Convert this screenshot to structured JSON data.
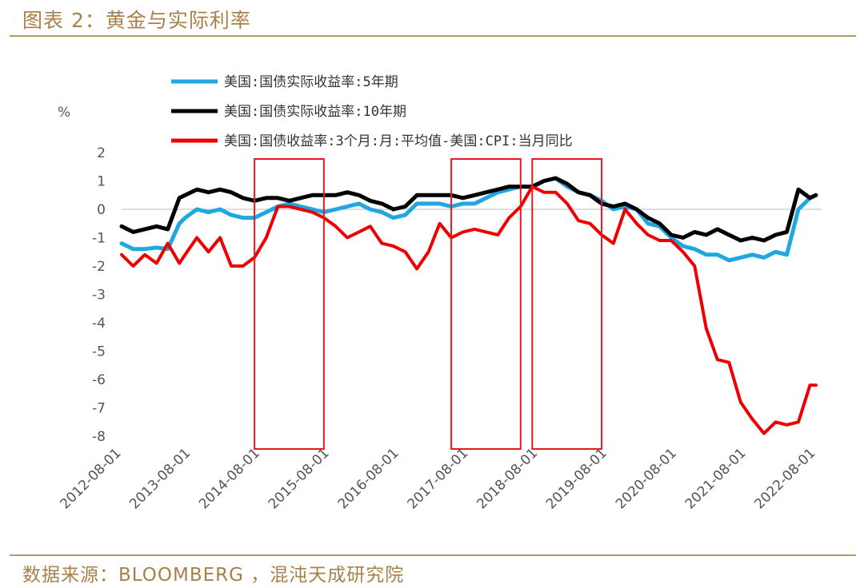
{
  "title": "图表 2：黄金与实际利率",
  "source": "数据来源：BLOOMBERG ，混沌天成研究院",
  "colors": {
    "accent": "#b99766",
    "title": "#a8804a",
    "highlight_box": "#e8191e"
  },
  "chart_data": {
    "type": "line",
    "ylabel": "%",
    "ylim": [
      -8,
      2
    ],
    "y_ticks": [
      "2",
      "1",
      "0",
      "-1",
      "-2",
      "-3",
      "-4",
      "-5",
      "-6",
      "-7",
      "-8"
    ],
    "x_range": [
      "2012-08-01",
      "2022-08-31"
    ],
    "x_ticks": [
      "2012-08-01",
      "2013-08-01",
      "2014-08-01",
      "2015-08-01",
      "2016-08-01",
      "2017-08-01",
      "2018-08-01",
      "2019-08-01",
      "2020-08-01",
      "2021-08-01",
      "2022-08-01"
    ],
    "grid": false,
    "legend_position": "top",
    "series": [
      {
        "name": "美国:国债实际收益率:5年期",
        "color": "#1ea7e1",
        "x": [
          "2012-08",
          "2012-10",
          "2012-12",
          "2013-02",
          "2013-04",
          "2013-06",
          "2013-07",
          "2013-09",
          "2013-11",
          "2014-01",
          "2014-03",
          "2014-05",
          "2014-07",
          "2014-09",
          "2014-11",
          "2015-01",
          "2015-03",
          "2015-05",
          "2015-07",
          "2015-09",
          "2015-11",
          "2016-01",
          "2016-03",
          "2016-05",
          "2016-07",
          "2016-09",
          "2016-11",
          "2017-01",
          "2017-03",
          "2017-05",
          "2017-07",
          "2017-09",
          "2017-11",
          "2018-01",
          "2018-03",
          "2018-05",
          "2018-07",
          "2018-09",
          "2018-11",
          "2019-01",
          "2019-03",
          "2019-05",
          "2019-07",
          "2019-09",
          "2019-11",
          "2020-01",
          "2020-03",
          "2020-05",
          "2020-07",
          "2020-09",
          "2020-11",
          "2021-01",
          "2021-03",
          "2021-05",
          "2021-07",
          "2021-09",
          "2021-11",
          "2022-01",
          "2022-03",
          "2022-05",
          "2022-07",
          "2022-08"
        ],
        "values": [
          -1.2,
          -1.4,
          -1.4,
          -1.35,
          -1.4,
          -0.5,
          -0.3,
          0.0,
          -0.1,
          0.0,
          -0.2,
          -0.3,
          -0.3,
          -0.1,
          0.1,
          0.2,
          0.1,
          0.0,
          -0.1,
          0.0,
          0.1,
          0.2,
          0.0,
          -0.1,
          -0.3,
          -0.2,
          0.2,
          0.2,
          0.2,
          0.1,
          0.2,
          0.2,
          0.4,
          0.6,
          0.7,
          0.8,
          0.8,
          1.0,
          1.1,
          0.8,
          0.6,
          0.5,
          0.3,
          0.0,
          0.1,
          0.0,
          -0.5,
          -0.6,
          -1.0,
          -1.3,
          -1.4,
          -1.6,
          -1.6,
          -1.8,
          -1.7,
          -1.6,
          -1.7,
          -1.5,
          -1.6,
          0.0,
          0.4,
          0.5
        ]
      },
      {
        "name": "美国:国债实际收益率:10年期",
        "color": "#000000",
        "x": [
          "2012-08",
          "2012-10",
          "2012-12",
          "2013-02",
          "2013-04",
          "2013-06",
          "2013-07",
          "2013-09",
          "2013-11",
          "2014-01",
          "2014-03",
          "2014-05",
          "2014-07",
          "2014-09",
          "2014-11",
          "2015-01",
          "2015-03",
          "2015-05",
          "2015-07",
          "2015-09",
          "2015-11",
          "2016-01",
          "2016-03",
          "2016-05",
          "2016-07",
          "2016-09",
          "2016-11",
          "2017-01",
          "2017-03",
          "2017-05",
          "2017-07",
          "2017-09",
          "2017-11",
          "2018-01",
          "2018-03",
          "2018-05",
          "2018-07",
          "2018-09",
          "2018-11",
          "2019-01",
          "2019-03",
          "2019-05",
          "2019-07",
          "2019-09",
          "2019-11",
          "2020-01",
          "2020-03",
          "2020-05",
          "2020-07",
          "2020-09",
          "2020-11",
          "2021-01",
          "2021-03",
          "2021-05",
          "2021-07",
          "2021-09",
          "2021-11",
          "2022-01",
          "2022-03",
          "2022-05",
          "2022-07",
          "2022-08"
        ],
        "values": [
          -0.6,
          -0.8,
          -0.7,
          -0.6,
          -0.7,
          0.4,
          0.5,
          0.7,
          0.6,
          0.7,
          0.6,
          0.4,
          0.3,
          0.4,
          0.4,
          0.3,
          0.4,
          0.5,
          0.5,
          0.5,
          0.6,
          0.5,
          0.3,
          0.2,
          0.0,
          0.1,
          0.5,
          0.5,
          0.5,
          0.5,
          0.4,
          0.5,
          0.6,
          0.7,
          0.8,
          0.8,
          0.8,
          1.0,
          1.1,
          0.9,
          0.6,
          0.5,
          0.2,
          0.1,
          0.2,
          0.0,
          -0.3,
          -0.5,
          -0.9,
          -1.0,
          -0.8,
          -0.9,
          -0.7,
          -0.9,
          -1.1,
          -1.0,
          -1.1,
          -0.9,
          -0.8,
          0.7,
          0.4,
          0.5
        ]
      },
      {
        "name": "美国:国债收益率:3个月:月:平均值-美国:CPI:当月同比",
        "color": "#ee0000",
        "x": [
          "2012-08",
          "2012-10",
          "2012-12",
          "2013-02",
          "2013-04",
          "2013-06",
          "2013-07",
          "2013-09",
          "2013-11",
          "2014-01",
          "2014-03",
          "2014-05",
          "2014-07",
          "2014-09",
          "2014-11",
          "2015-01",
          "2015-03",
          "2015-05",
          "2015-07",
          "2015-09",
          "2015-11",
          "2016-01",
          "2016-03",
          "2016-05",
          "2016-07",
          "2016-09",
          "2016-11",
          "2017-01",
          "2017-03",
          "2017-05",
          "2017-07",
          "2017-09",
          "2017-11",
          "2018-01",
          "2018-03",
          "2018-05",
          "2018-07",
          "2018-09",
          "2018-11",
          "2019-01",
          "2019-03",
          "2019-05",
          "2019-07",
          "2019-09",
          "2019-11",
          "2020-01",
          "2020-03",
          "2020-05",
          "2020-07",
          "2020-09",
          "2020-11",
          "2021-01",
          "2021-03",
          "2021-05",
          "2021-07",
          "2021-09",
          "2021-11",
          "2022-01",
          "2022-03",
          "2022-05",
          "2022-07",
          "2022-08"
        ],
        "values": [
          -1.6,
          -2.0,
          -1.6,
          -1.9,
          -1.2,
          -1.9,
          -1.6,
          -1.0,
          -1.5,
          -1.0,
          -2.0,
          -2.0,
          -1.7,
          -1.0,
          0.1,
          0.1,
          0.0,
          -0.1,
          -0.3,
          -0.6,
          -1.0,
          -0.8,
          -0.6,
          -1.2,
          -1.3,
          -1.5,
          -2.1,
          -1.5,
          -0.5,
          -1.0,
          -0.8,
          -0.7,
          -0.8,
          -0.9,
          -0.3,
          0.1,
          0.8,
          0.6,
          0.6,
          0.2,
          -0.4,
          -0.5,
          -0.9,
          -1.2,
          0.0,
          -0.5,
          -0.9,
          -1.1,
          -1.1,
          -1.5,
          -2.0,
          -4.2,
          -5.3,
          -5.4,
          -6.8,
          -7.4,
          -7.9,
          -7.5,
          -7.6,
          -7.5,
          -6.2,
          -6.2
        ]
      }
    ],
    "highlight_periods": [
      {
        "start": "2014-07",
        "end": "2015-07"
      },
      {
        "start": "2017-05",
        "end": "2018-05"
      },
      {
        "start": "2018-07",
        "end": "2019-07"
      }
    ]
  }
}
